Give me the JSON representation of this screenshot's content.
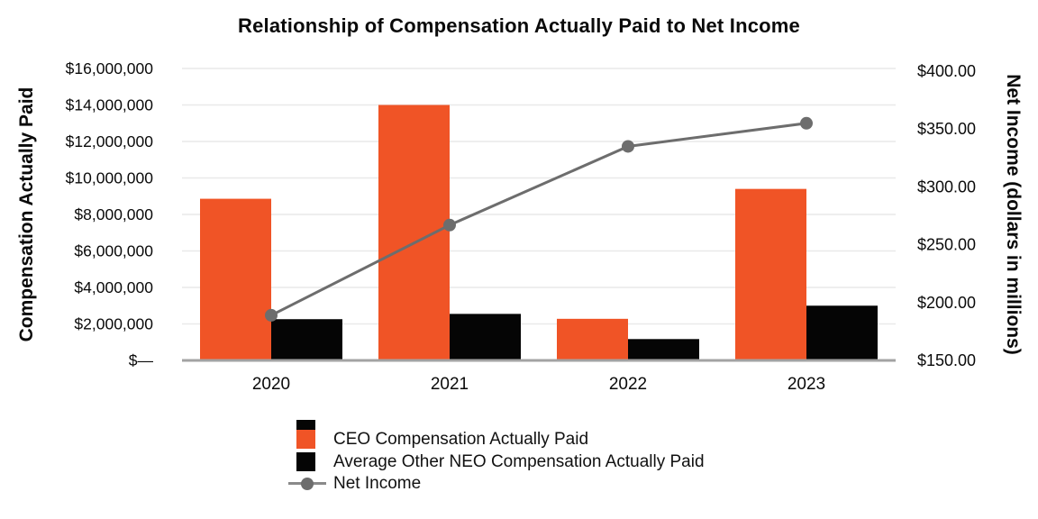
{
  "chart_data": {
    "type": "combo-bar-line",
    "title": "Relationship of Compensation Actually Paid to Net Income",
    "categories": [
      "2020",
      "2021",
      "2022",
      "2023"
    ],
    "series": [
      {
        "name": "CEO Compensation Actually Paid",
        "type": "bar",
        "axis": "left",
        "color": "#F05426",
        "values": [
          8860000,
          14000000,
          2280000,
          9400000
        ]
      },
      {
        "name": "Average Other NEO Compensation Actually Paid",
        "type": "bar",
        "axis": "left",
        "color": "#050505",
        "values": [
          2260000,
          2550000,
          1170000,
          3000000
        ]
      },
      {
        "name": "Net Income",
        "type": "line",
        "axis": "right",
        "color": "#6D6D6D",
        "values": [
          189,
          267,
          335,
          355
        ]
      }
    ],
    "left_axis": {
      "title": "Compensation Actually Paid",
      "min": 0,
      "max": 16000000,
      "step": 2000000,
      "tick_labels": [
        "$—",
        "$2,000,000",
        "$4,000,000",
        "$6,000,000",
        "$8,000,000",
        "$10,000,000",
        "$12,000,000",
        "$14,000,000",
        "$16,000,000"
      ]
    },
    "right_axis": {
      "title": "Net Income (dollars in millions)",
      "min": 150,
      "max": 400,
      "step": 50,
      "tick_labels": [
        "$150.00",
        "$200.00",
        "$250.00",
        "$300.00",
        "$350.00",
        "$400.00"
      ]
    },
    "legend": {
      "position": "bottom-left",
      "items": [
        "CEO Compensation Actually Paid",
        "Average Other NEO Compensation Actually Paid",
        "Net Income"
      ]
    },
    "grid": "horizontal",
    "colors": {
      "grid": "#E9E9E9",
      "axis_line": "#A3A3A3",
      "text": "#0A0A0A"
    }
  }
}
